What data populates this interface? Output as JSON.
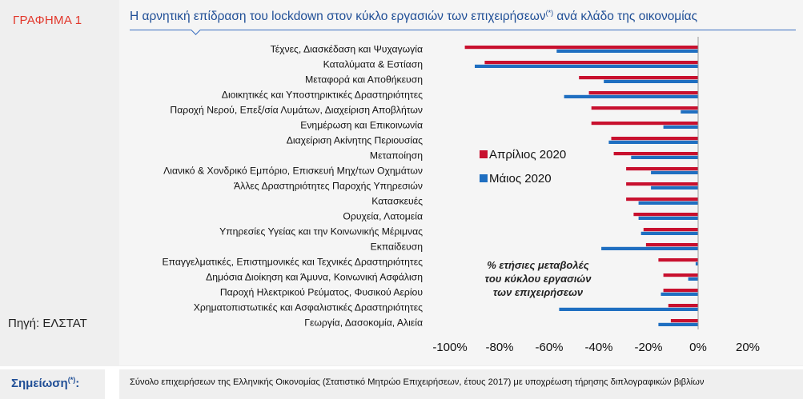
{
  "left": {
    "graph_label": "ΓΡΑΦΗΜΑ 1",
    "source": "Πηγή: ΕΛΣΤΑΤ"
  },
  "header": {
    "title_main": "Η αρνητική επίδραση του lockdown στον κύκλο εργασιών των επιχειρήσεων",
    "title_sup": "(*)",
    "title_tail": " ανά κλάδο της οικονομίας"
  },
  "footer": {
    "note_label": "Σημείωση",
    "note_sup": "(*)",
    "note_colon": ":",
    "note_text": "Σύνολο επιχειρήσεων της Ελληνικής Οικονομίας (Στατιστικό Μητρώο Επιχειρήσεων, έτους 2017) με υποχρέωση τήρησης διπλογραφικών βιβλίων"
  },
  "annotation": [
    "% ετήσιες μεταβολές",
    "του κύκλου εργασιών",
    "των επιχειρήσεων"
  ],
  "colors": {
    "april": "#c8102e",
    "may": "#1f6fc1"
  },
  "chart_data": {
    "type": "bar",
    "orientation": "horizontal",
    "categories": [
      "Τέχνες, Διασκέδαση και Ψυχαγωγία",
      "Καταλύματα  & Εστίαση",
      "Μεταφορά και Αποθήκευση",
      "Διοικητικές και Υποστηρικτικές Δραστηριότητες",
      "Παροχή Νερού, Επεξ/σία Λυμάτων, Διαχείριση Αποβλήτων",
      "Ενημέρωση και Επικοινωνία",
      "Διαχείριση Ακίνητης Περιουσίας",
      "Μεταποίηση",
      "Λιανικό & Χονδρικό Εμπόριο, Επισκευή Μηχ/των Οχημάτων",
      "Άλλες Δραστηριότητες Παροχής Υπηρεσιών",
      "Κατασκευές",
      "Ορυχεία, Λατομεία",
      "Υπηρεσίες Υγείας και την Κοινωνικής Μέριμνας",
      "Εκπαίδευση",
      "Επαγγελματικές, Επιστημονικές και Τεχνικές Δραστηριότητες",
      "Δημόσια Διοίκηση και Άμυνα, Κοινωνική Ασφάλιση",
      "Παροχή Ηλεκτρικού Ρεύματος, Φυσικού Αερίου",
      "Χρηματοπιστωτικές και Ασφαλιστικές Δραστηριότητες",
      "Γεωργία, Δασοκομία, Αλιεία"
    ],
    "series": [
      {
        "name": "Απρίλιος 2020",
        "color": "#c8102e",
        "values": [
          -94,
          -86,
          -48,
          -44,
          -43,
          -43,
          -35,
          -34,
          -29,
          -29,
          -29,
          -26,
          -22,
          -21,
          -16,
          -14,
          -14,
          -12,
          -11
        ]
      },
      {
        "name": "Μάιος 2020",
        "color": "#1f6fc1",
        "values": [
          -57,
          -90,
          -38,
          -54,
          -7,
          -14,
          -36,
          -27,
          -19,
          -19,
          -24,
          -24,
          -23,
          -39,
          -1,
          -4,
          -15,
          -56,
          -16
        ]
      }
    ],
    "xticks": [
      "-100%",
      "-80%",
      "-60%",
      "-40%",
      "-20%",
      "0%",
      "20%"
    ],
    "xlim": [
      -100,
      20
    ],
    "legend_position": "center-right",
    "grid": false
  }
}
